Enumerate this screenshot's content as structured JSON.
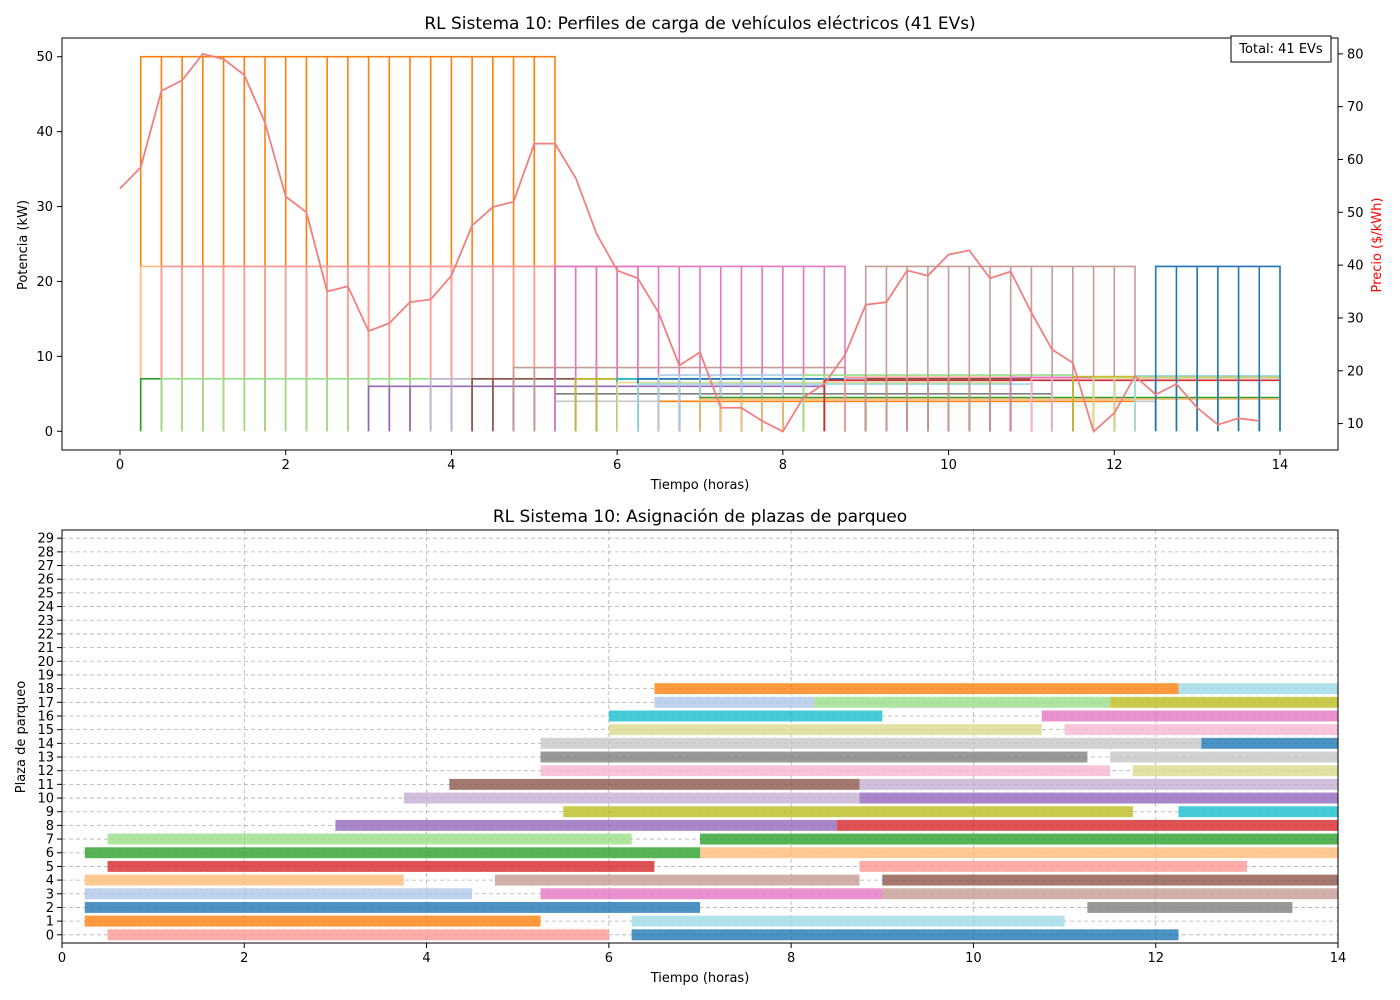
{
  "chart_data": [
    {
      "type": "line",
      "title": "RL Sistema 10: Perfiles de carga de vehículos eléctricos (41 EVs)",
      "xlabel": "Tiempo (horas)",
      "ylabel": "Potencia (kW)",
      "y2label": "Precio ($/kWh)",
      "xlim": [
        -0.7,
        14.7
      ],
      "ylim": [
        -2.5,
        52.5
      ],
      "y2lim": [
        5,
        83
      ],
      "xticks": [
        0,
        2,
        4,
        6,
        8,
        10,
        12,
        14
      ],
      "yticks": [
        0,
        10,
        20,
        30,
        40,
        50
      ],
      "y2ticks": [
        10,
        20,
        30,
        40,
        50,
        60,
        70,
        80
      ],
      "annotation": "Total: 41 EVs",
      "annotation_position": "top-right",
      "colors": {
        "price": "#f08080",
        "y2label": "#ff0000"
      },
      "price_series": {
        "x": [
          0,
          0.25,
          0.5,
          0.75,
          1,
          1.25,
          1.5,
          1.75,
          2,
          2.25,
          2.5,
          2.75,
          3,
          3.25,
          3.5,
          3.75,
          4,
          4.25,
          4.5,
          4.75,
          5,
          5.25,
          5.5,
          5.75,
          6,
          6.25,
          6.5,
          6.75,
          7,
          7.25,
          7.5,
          7.75,
          8,
          8.25,
          8.5,
          8.75,
          9,
          9.25,
          9.5,
          9.75,
          10,
          10.25,
          10.5,
          10.75,
          11,
          11.25,
          11.5,
          11.75,
          12,
          12.25,
          12.5,
          12.75,
          13,
          13.25,
          13.5,
          13.75
        ],
        "y": [
          54.5,
          58.5,
          73,
          75,
          80,
          79,
          76,
          67,
          53,
          50,
          35,
          36,
          27.5,
          29,
          33,
          33.5,
          38,
          47.5,
          51,
          52,
          63,
          63,
          56.5,
          46,
          39,
          37.5,
          31,
          21,
          23.5,
          13,
          13,
          10.5,
          8.5,
          15,
          17.5,
          23,
          32.5,
          33,
          39,
          38,
          42,
          42.8,
          37.5,
          38.8,
          31,
          24,
          21.5,
          8.5,
          12,
          19,
          15.5,
          17.5,
          13,
          9.8,
          11,
          10.5
        ]
      },
      "ev_profiles": [
        {
          "start": 0.25,
          "end": 5.25,
          "peak": 50,
          "base": 7,
          "color": "#ff7f0e"
        },
        {
          "start": 0.25,
          "end": 5.25,
          "peak": 22,
          "base": 7,
          "color": "#ffbb78"
        },
        {
          "start": 0.25,
          "end": 0.5,
          "peak": 7,
          "base": 7,
          "color": "#2ca02c"
        },
        {
          "start": 0.5,
          "end": 6.25,
          "peak": 22,
          "base": 7,
          "color": "#ff9896"
        },
        {
          "start": 0.5,
          "end": 6.25,
          "peak": 7,
          "base": 7,
          "color": "#98df8a"
        },
        {
          "start": 3,
          "end": 8.5,
          "peak": 6,
          "base": 6,
          "color": "#9467bd"
        },
        {
          "start": 3.75,
          "end": 8.75,
          "peak": 7,
          "base": 7,
          "color": "#c5b0d5"
        },
        {
          "start": 4.25,
          "end": 8.75,
          "peak": 7,
          "base": 7,
          "color": "#8c564b"
        },
        {
          "start": 4.75,
          "end": 8.75,
          "peak": 8.5,
          "base": 8.5,
          "color": "#c49c94"
        },
        {
          "start": 5.25,
          "end": 11.25,
          "peak": 5,
          "base": 5,
          "color": "#7f7f7f"
        },
        {
          "start": 5.25,
          "end": 12.5,
          "peak": 4,
          "base": 4,
          "color": "#c7c7c7"
        },
        {
          "start": 5.25,
          "end": 8.75,
          "peak": 22,
          "base": 22,
          "color": "#e377c2"
        },
        {
          "start": 5.5,
          "end": 11.75,
          "peak": 7,
          "base": 7,
          "color": "#bcbd22"
        },
        {
          "start": 6,
          "end": 9,
          "peak": 7,
          "base": 7,
          "color": "#17becf"
        },
        {
          "start": 6,
          "end": 10.75,
          "peak": 6.5,
          "base": 6.5,
          "color": "#dbdb8d"
        },
        {
          "start": 6.25,
          "end": 12.25,
          "peak": 7,
          "base": 7,
          "color": "#1f77b4"
        },
        {
          "start": 6.25,
          "end": 11,
          "peak": 6.3,
          "base": 6.3,
          "color": "#9edae5"
        },
        {
          "start": 6.5,
          "end": 12.25,
          "peak": 4,
          "base": 4,
          "color": "#ff7f0e"
        },
        {
          "start": 6.5,
          "end": 8.25,
          "peak": 7.5,
          "base": 7.5,
          "color": "#aec7e8"
        },
        {
          "start": 7,
          "end": 14,
          "peak": 4.5,
          "base": 4.5,
          "color": "#2ca02c"
        },
        {
          "start": 7,
          "end": 14,
          "peak": 4.3,
          "base": 4.3,
          "color": "#ffbb78"
        },
        {
          "start": 8.25,
          "end": 11.5,
          "peak": 7.5,
          "base": 7.5,
          "color": "#98df8a"
        },
        {
          "start": 8.5,
          "end": 14,
          "peak": 6.8,
          "base": 6.8,
          "color": "#d62728"
        },
        {
          "start": 8.75,
          "end": 14,
          "peak": 7,
          "base": 7,
          "color": "#c5b0d5"
        },
        {
          "start": 8.75,
          "end": 13,
          "peak": 7.2,
          "base": 7.2,
          "color": "#ff9896"
        },
        {
          "start": 9,
          "end": 14,
          "peak": 7,
          "base": 7,
          "color": "#8c564b"
        },
        {
          "start": 9,
          "end": 12.25,
          "peak": 22,
          "base": 22,
          "color": "#c49c94"
        },
        {
          "start": 10.75,
          "end": 14,
          "peak": 7.2,
          "base": 7.2,
          "color": "#e377c2"
        },
        {
          "start": 11,
          "end": 14,
          "peak": 7,
          "base": 7,
          "color": "#f7b6d2"
        },
        {
          "start": 11.5,
          "end": 14,
          "peak": 7.3,
          "base": 7.3,
          "color": "#bcbd22"
        },
        {
          "start": 11.75,
          "end": 14,
          "peak": 7.1,
          "base": 7.1,
          "color": "#dbdb8d"
        },
        {
          "start": 12.25,
          "end": 14,
          "peak": 7.4,
          "base": 7.4,
          "color": "#9edae5"
        },
        {
          "start": 12.5,
          "end": 14,
          "peak": 22,
          "base": 22,
          "color": "#1f77b4"
        }
      ]
    },
    {
      "type": "gantt",
      "title": "RL Sistema 10: Asignación de plazas de parqueo",
      "xlabel": "Tiempo (horas)",
      "ylabel": "Plaza de parqueo",
      "xlim": [
        0,
        14
      ],
      "xticks": [
        0,
        2,
        4,
        6,
        8,
        10,
        12,
        14
      ],
      "yticks": [
        0,
        1,
        2,
        3,
        4,
        5,
        6,
        7,
        8,
        9,
        10,
        11,
        12,
        13,
        14,
        15,
        16,
        17,
        18,
        19,
        20,
        21,
        22,
        23,
        24,
        25,
        26,
        27,
        28,
        29
      ],
      "grid": true,
      "bars": [
        {
          "spot": 0,
          "start": 0.5,
          "end": 6,
          "color": "#ff9896"
        },
        {
          "spot": 0,
          "start": 6.25,
          "end": 12.25,
          "color": "#1f77b4"
        },
        {
          "spot": 1,
          "start": 0.25,
          "end": 5.25,
          "color": "#ff7f0e"
        },
        {
          "spot": 1,
          "start": 6.25,
          "end": 11,
          "color": "#9edae5"
        },
        {
          "spot": 2,
          "start": 0.25,
          "end": 7,
          "color": "#1f77b4"
        },
        {
          "spot": 2,
          "start": 11.25,
          "end": 13.5,
          "color": "#7f7f7f"
        },
        {
          "spot": 3,
          "start": 0.25,
          "end": 4.5,
          "color": "#aec7e8"
        },
        {
          "spot": 3,
          "start": 5.25,
          "end": 9,
          "color": "#e377c2"
        },
        {
          "spot": 3,
          "start": 9,
          "end": 14,
          "color": "#c49c94"
        },
        {
          "spot": 4,
          "start": 0.25,
          "end": 3.75,
          "color": "#ffbb78"
        },
        {
          "spot": 4,
          "start": 4.75,
          "end": 8.75,
          "color": "#c49c94"
        },
        {
          "spot": 4,
          "start": 9,
          "end": 14,
          "color": "#8c564b"
        },
        {
          "spot": 5,
          "start": 0.5,
          "end": 6.5,
          "color": "#d62728"
        },
        {
          "spot": 5,
          "start": 8.75,
          "end": 13,
          "color": "#ff9896"
        },
        {
          "spot": 6,
          "start": 0.25,
          "end": 7,
          "color": "#2ca02c"
        },
        {
          "spot": 6,
          "start": 7,
          "end": 14,
          "color": "#ffbb78"
        },
        {
          "spot": 7,
          "start": 0.5,
          "end": 6.25,
          "color": "#98df8a"
        },
        {
          "spot": 7,
          "start": 7,
          "end": 14,
          "color": "#2ca02c"
        },
        {
          "spot": 8,
          "start": 3,
          "end": 8.5,
          "color": "#9467bd"
        },
        {
          "spot": 8,
          "start": 8.5,
          "end": 14,
          "color": "#d62728"
        },
        {
          "spot": 9,
          "start": 5.5,
          "end": 11.75,
          "color": "#bcbd22"
        },
        {
          "spot": 9,
          "start": 12.25,
          "end": 14,
          "color": "#17becf"
        },
        {
          "spot": 10,
          "start": 3.75,
          "end": 8.75,
          "color": "#c5b0d5"
        },
        {
          "spot": 10,
          "start": 8.75,
          "end": 14,
          "color": "#9467bd"
        },
        {
          "spot": 11,
          "start": 4.25,
          "end": 8.75,
          "color": "#8c564b"
        },
        {
          "spot": 11,
          "start": 8.75,
          "end": 14,
          "color": "#c5b0d5"
        },
        {
          "spot": 12,
          "start": 5.25,
          "end": 11.5,
          "color": "#f7b6d2"
        },
        {
          "spot": 12,
          "start": 11.75,
          "end": 14,
          "color": "#dbdb8d"
        },
        {
          "spot": 13,
          "start": 5.25,
          "end": 11.25,
          "color": "#7f7f7f"
        },
        {
          "spot": 13,
          "start": 11.5,
          "end": 14,
          "color": "#c7c7c7"
        },
        {
          "spot": 14,
          "start": 5.25,
          "end": 12.5,
          "color": "#c7c7c7"
        },
        {
          "spot": 14,
          "start": 12.5,
          "end": 14,
          "color": "#1f77b4"
        },
        {
          "spot": 15,
          "start": 6,
          "end": 10.75,
          "color": "#dbdb8d"
        },
        {
          "spot": 15,
          "start": 11,
          "end": 14,
          "color": "#f7b6d2"
        },
        {
          "spot": 16,
          "start": 6,
          "end": 9,
          "color": "#17becf"
        },
        {
          "spot": 16,
          "start": 10.75,
          "end": 14,
          "color": "#e377c2"
        },
        {
          "spot": 17,
          "start": 6.5,
          "end": 8.25,
          "color": "#aec7e8"
        },
        {
          "spot": 17,
          "start": 8.25,
          "end": 11.5,
          "color": "#98df8a"
        },
        {
          "spot": 17,
          "start": 11.5,
          "end": 14,
          "color": "#bcbd22"
        },
        {
          "spot": 18,
          "start": 6.5,
          "end": 12.25,
          "color": "#ff7f0e"
        },
        {
          "spot": 18,
          "start": 12.25,
          "end": 14,
          "color": "#9edae5"
        }
      ]
    }
  ]
}
